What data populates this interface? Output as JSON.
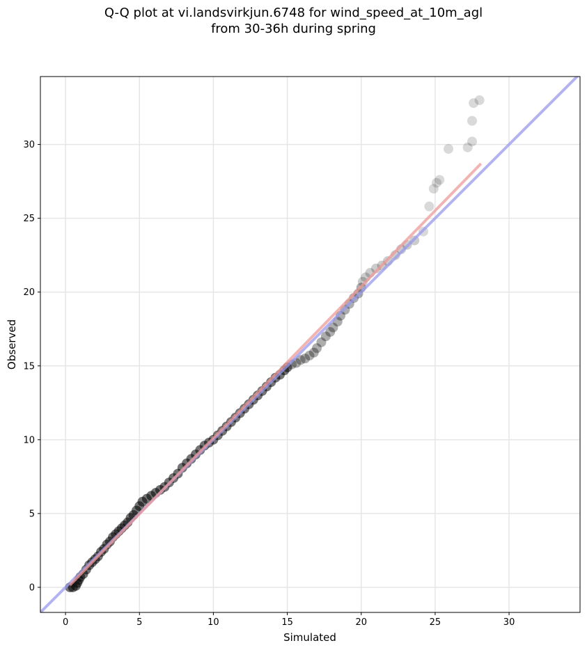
{
  "chart_data": {
    "type": "scatter",
    "title_line1": "Q-Q plot at vi.landsvirkjun.6748 for wind_speed_at_10m_agl",
    "title_line2": "from 30-36h during spring",
    "xlabel": "Simulated",
    "ylabel": "Observed",
    "xlim": [
      -1.7,
      34.8
    ],
    "ylim": [
      -1.7,
      34.6
    ],
    "xticks": [
      0,
      5,
      10,
      15,
      20,
      25,
      30
    ],
    "yticks": [
      0,
      5,
      10,
      15,
      20,
      25,
      30
    ],
    "grid": true,
    "reference_lines": [
      {
        "color": "#9999ee",
        "from": [
          -1.7,
          -1.7
        ],
        "to": [
          34.8,
          34.8
        ]
      },
      {
        "color": "#ee9999",
        "from": [
          0.3,
          0.15
        ],
        "to": [
          28.1,
          28.7
        ]
      }
    ],
    "points": [
      [
        0.3,
        0.0
      ],
      [
        0.5,
        0.0
      ],
      [
        0.7,
        0.1
      ],
      [
        0.8,
        0.3
      ],
      [
        0.9,
        0.5
      ],
      [
        1.0,
        0.7
      ],
      [
        1.2,
        0.9
      ],
      [
        1.4,
        1.2
      ],
      [
        1.6,
        1.5
      ],
      [
        1.8,
        1.7
      ],
      [
        2.0,
        1.9
      ],
      [
        2.2,
        2.1
      ],
      [
        2.4,
        2.4
      ],
      [
        2.6,
        2.6
      ],
      [
        2.8,
        2.9
      ],
      [
        3.0,
        3.1
      ],
      [
        3.2,
        3.4
      ],
      [
        3.4,
        3.6
      ],
      [
        3.6,
        3.8
      ],
      [
        3.8,
        4.0
      ],
      [
        4.0,
        4.2
      ],
      [
        4.2,
        4.4
      ],
      [
        4.4,
        4.7
      ],
      [
        4.6,
        4.9
      ],
      [
        4.8,
        5.2
      ],
      [
        5.0,
        5.5
      ],
      [
        5.2,
        5.8
      ],
      [
        5.5,
        6.0
      ],
      [
        5.8,
        6.2
      ],
      [
        6.1,
        6.4
      ],
      [
        6.4,
        6.6
      ],
      [
        6.7,
        6.8
      ],
      [
        7.0,
        7.1
      ],
      [
        7.3,
        7.4
      ],
      [
        7.6,
        7.7
      ],
      [
        7.9,
        8.1
      ],
      [
        8.2,
        8.4
      ],
      [
        8.5,
        8.7
      ],
      [
        8.8,
        9.0
      ],
      [
        9.1,
        9.3
      ],
      [
        9.4,
        9.6
      ],
      [
        9.7,
        9.8
      ],
      [
        10.0,
        10.0
      ],
      [
        10.3,
        10.3
      ],
      [
        10.6,
        10.6
      ],
      [
        10.9,
        10.9
      ],
      [
        11.2,
        11.2
      ],
      [
        11.5,
        11.5
      ],
      [
        11.8,
        11.8
      ],
      [
        12.1,
        12.1
      ],
      [
        12.4,
        12.4
      ],
      [
        12.7,
        12.7
      ],
      [
        13.0,
        13.0
      ],
      [
        13.3,
        13.3
      ],
      [
        13.6,
        13.6
      ],
      [
        13.9,
        13.9
      ],
      [
        14.2,
        14.2
      ],
      [
        14.5,
        14.4
      ],
      [
        14.8,
        14.7
      ],
      [
        15.0,
        14.9
      ],
      [
        15.3,
        15.1
      ],
      [
        15.6,
        15.2
      ],
      [
        15.9,
        15.4
      ],
      [
        16.2,
        15.5
      ],
      [
        16.5,
        15.7
      ],
      [
        16.8,
        15.9
      ],
      [
        17.0,
        16.2
      ],
      [
        17.3,
        16.6
      ],
      [
        17.6,
        17.0
      ],
      [
        17.9,
        17.3
      ],
      [
        18.1,
        17.6
      ],
      [
        18.4,
        18.0
      ],
      [
        18.6,
        18.4
      ],
      [
        18.9,
        18.8
      ],
      [
        19.2,
        19.2
      ],
      [
        19.5,
        19.6
      ],
      [
        19.8,
        19.9
      ],
      [
        20.0,
        20.3
      ],
      [
        20.1,
        20.7
      ],
      [
        20.3,
        21.0
      ],
      [
        20.6,
        21.3
      ],
      [
        21.0,
        21.6
      ],
      [
        21.4,
        21.8
      ],
      [
        21.8,
        22.1
      ],
      [
        22.3,
        22.5
      ],
      [
        22.7,
        22.9
      ],
      [
        23.1,
        23.2
      ],
      [
        23.6,
        23.5
      ],
      [
        24.2,
        24.1
      ],
      [
        24.6,
        25.8
      ],
      [
        24.9,
        27.0
      ],
      [
        25.1,
        27.4
      ],
      [
        25.3,
        27.6
      ],
      [
        25.9,
        29.7
      ],
      [
        27.2,
        29.8
      ],
      [
        27.5,
        30.2
      ],
      [
        27.5,
        31.6
      ],
      [
        27.6,
        32.8
      ],
      [
        28.0,
        33.0
      ]
    ]
  }
}
